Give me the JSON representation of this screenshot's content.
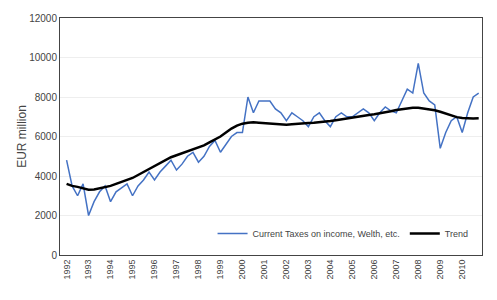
{
  "chart_data": {
    "type": "line",
    "x": [
      1992,
      1992.25,
      1992.5,
      1992.75,
      1993,
      1993.25,
      1993.5,
      1993.75,
      1994,
      1994.25,
      1994.5,
      1994.75,
      1995,
      1995.25,
      1995.5,
      1995.75,
      1996,
      1996.25,
      1996.5,
      1996.75,
      1997,
      1997.25,
      1997.5,
      1997.75,
      1998,
      1998.25,
      1998.5,
      1998.75,
      1999,
      1999.25,
      1999.5,
      1999.75,
      2000,
      2000.25,
      2000.5,
      2000.75,
      2001,
      2001.25,
      2001.5,
      2001.75,
      2002,
      2002.25,
      2002.5,
      2002.75,
      2003,
      2003.25,
      2003.5,
      2003.75,
      2004,
      2004.25,
      2004.5,
      2004.75,
      2005,
      2005.25,
      2005.5,
      2005.75,
      2006,
      2006.25,
      2006.5,
      2006.75,
      2007,
      2007.25,
      2007.5,
      2007.75,
      2008,
      2008.25,
      2008.5,
      2008.75,
      2009,
      2009.25,
      2009.5,
      2009.75,
      2010,
      2010.25,
      2010.5,
      2010.75
    ],
    "series": [
      {
        "name": "Current Taxes on income, Welth, etc.",
        "color": "#4472C4",
        "values": [
          4800,
          3500,
          3000,
          3600,
          2000,
          2700,
          3200,
          3500,
          2700,
          3200,
          3400,
          3600,
          3000,
          3500,
          3800,
          4200,
          3800,
          4200,
          4500,
          4800,
          4300,
          4600,
          5000,
          5200,
          4700,
          5000,
          5500,
          5800,
          5200,
          5600,
          6000,
          6200,
          6200,
          8000,
          7200,
          7800,
          7800,
          7800,
          7400,
          7200,
          6800,
          7200,
          7000,
          6800,
          6500,
          7000,
          7200,
          6800,
          6500,
          7000,
          7200,
          7000,
          7000,
          7200,
          7400,
          7200,
          6800,
          7200,
          7500,
          7300,
          7200,
          7800,
          8400,
          8200,
          9700,
          8200,
          7800,
          7600,
          5400,
          6200,
          6800,
          7000,
          6200,
          7200,
          8000,
          8200
        ]
      },
      {
        "name": "Trend",
        "color": "#000000",
        "values": [
          3600,
          3500,
          3450,
          3380,
          3300,
          3320,
          3380,
          3450,
          3500,
          3600,
          3700,
          3800,
          3900,
          4050,
          4200,
          4350,
          4500,
          4650,
          4800,
          4950,
          5050,
          5150,
          5250,
          5350,
          5450,
          5550,
          5700,
          5850,
          6000,
          6200,
          6400,
          6550,
          6650,
          6700,
          6720,
          6700,
          6680,
          6650,
          6630,
          6610,
          6600,
          6620,
          6650,
          6670,
          6680,
          6700,
          6720,
          6750,
          6780,
          6820,
          6870,
          6920,
          6970,
          7010,
          7050,
          7090,
          7130,
          7170,
          7220,
          7280,
          7340,
          7380,
          7420,
          7450,
          7450,
          7420,
          7380,
          7330,
          7250,
          7150,
          7050,
          6980,
          6940,
          6920,
          6910,
          6920
        ]
      }
    ],
    "ylabel": "EUR million",
    "xlim": [
      1991.7,
      2010.9
    ],
    "xticks": [
      1992,
      1993,
      1994,
      1995,
      1996,
      1997,
      1998,
      1999,
      2000,
      2001,
      2002,
      2003,
      2004,
      2005,
      2006,
      2007,
      2008,
      2009,
      2010
    ],
    "ylim": [
      0,
      12000
    ],
    "yticks": [
      0,
      2000,
      4000,
      6000,
      8000,
      10000,
      12000
    ],
    "grid": "y",
    "legend": "lower right"
  }
}
